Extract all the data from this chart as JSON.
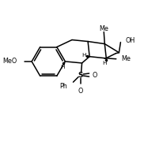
{
  "bg_color": "#ffffff",
  "line_color": "#000000",
  "lw": 1.1,
  "fig_width": 2.07,
  "fig_height": 1.8,
  "dpi": 100,
  "xlim": [
    0,
    10
  ],
  "ylim": [
    0,
    8.7
  ]
}
